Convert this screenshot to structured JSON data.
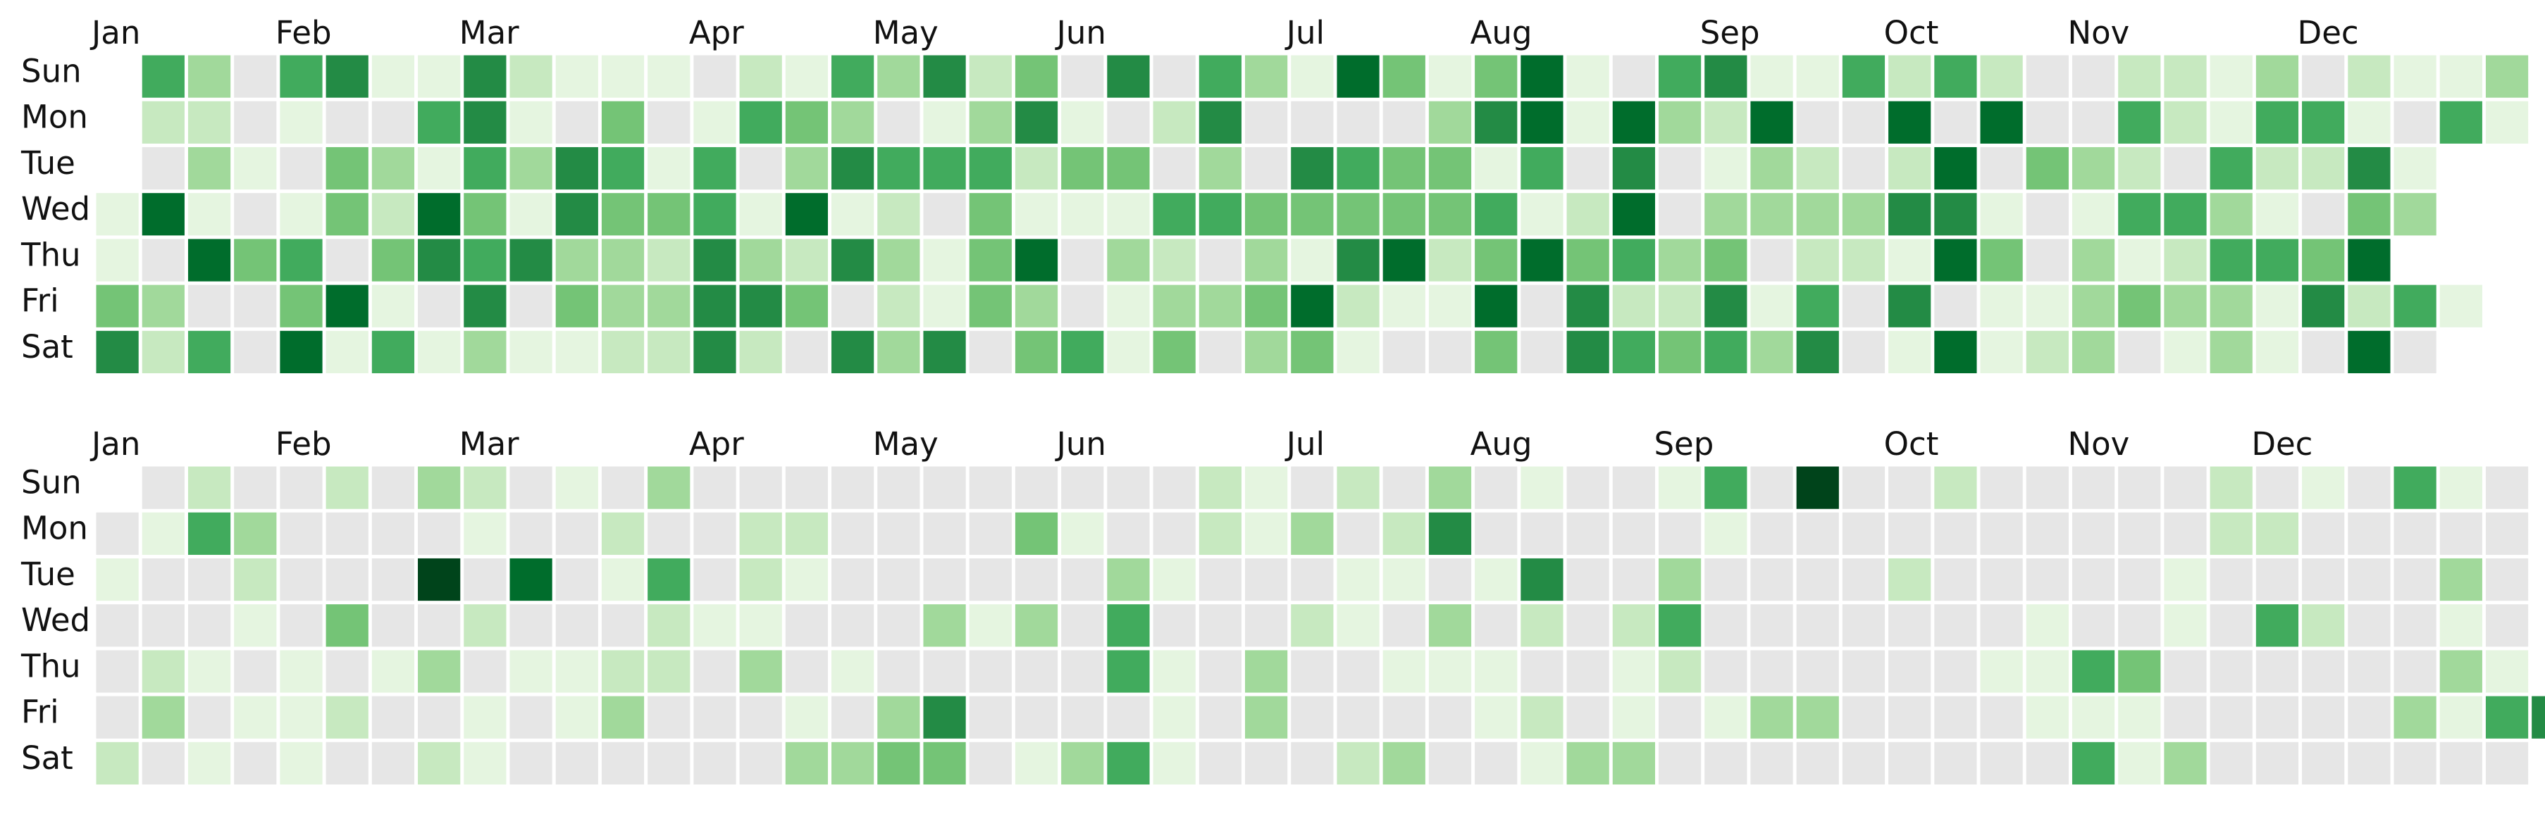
{
  "chart_data": {
    "type": "heatmap",
    "title": "",
    "weekdays": [
      "Sun",
      "Mon",
      "Tue",
      "Wed",
      "Thu",
      "Fri",
      "Sat"
    ],
    "months": [
      "Jan",
      "Feb",
      "Mar",
      "Apr",
      "May",
      "Jun",
      "Jul",
      "Aug",
      "Sep",
      "Oct",
      "Nov",
      "Dec"
    ],
    "scale": {
      "min": 0,
      "max": 8
    },
    "colors": {
      "empty": "#e6e6e6",
      "ramp": [
        "#f7fcf5",
        "#e5f5e0",
        "#c7e9c0",
        "#a1d99b",
        "#74c476",
        "#41ab5d",
        "#238b45",
        "#006d2c",
        "#00441b"
      ]
    },
    "calendars": [
      {
        "month_label_weeks": [
          0,
          4,
          8,
          13,
          17,
          21,
          26,
          30,
          35,
          39,
          43,
          48
        ],
        "grid": [
          [
            null,
            5,
            3,
            0,
            5,
            6,
            1,
            1,
            6,
            2,
            1,
            1,
            1,
            0,
            2,
            1,
            5,
            3,
            6,
            2,
            4,
            0,
            6,
            0,
            5,
            3,
            1,
            7,
            4,
            1,
            4,
            7,
            1,
            0,
            5,
            6,
            1,
            1,
            5,
            2,
            5,
            2,
            0,
            0,
            2,
            2,
            1,
            3,
            0,
            2,
            1,
            1,
            3
          ],
          [
            null,
            2,
            2,
            0,
            1,
            0,
            0,
            5,
            6,
            1,
            0,
            4,
            0,
            1,
            5,
            4,
            3,
            0,
            1,
            3,
            6,
            1,
            0,
            2,
            6,
            0,
            0,
            0,
            0,
            3,
            6,
            7,
            1,
            7,
            3,
            2,
            7,
            0,
            0,
            7,
            0,
            7,
            0,
            0,
            5,
            2,
            1,
            5,
            5,
            1,
            0,
            5,
            1
          ],
          [
            null,
            0,
            3,
            1,
            0,
            4,
            3,
            1,
            5,
            3,
            6,
            5,
            1,
            5,
            0,
            3,
            6,
            5,
            5,
            5,
            2,
            4,
            4,
            0,
            3,
            0,
            6,
            5,
            4,
            4,
            1,
            5,
            0,
            6,
            0,
            1,
            3,
            2,
            0,
            2,
            7,
            0,
            4,
            3,
            2,
            0,
            5,
            2,
            2,
            6,
            1
          ],
          [
            1,
            7,
            1,
            0,
            1,
            4,
            2,
            7,
            4,
            1,
            6,
            4,
            4,
            5,
            1,
            7,
            1,
            2,
            0,
            4,
            1,
            1,
            1,
            5,
            5,
            4,
            4,
            4,
            4,
            4,
            5,
            1,
            2,
            7,
            0,
            3,
            3,
            3,
            3,
            6,
            6,
            1,
            0,
            1,
            5,
            5,
            3,
            1,
            0,
            4,
            3
          ],
          [
            1,
            0,
            7,
            4,
            5,
            0,
            4,
            6,
            5,
            6,
            3,
            3,
            2,
            6,
            3,
            2,
            6,
            3,
            1,
            4,
            7,
            0,
            3,
            2,
            0,
            3,
            1,
            6,
            7,
            2,
            4,
            7,
            4,
            5,
            3,
            4,
            0,
            2,
            2,
            1,
            7,
            4,
            0,
            3,
            1,
            2,
            5,
            5,
            4,
            7
          ],
          [
            4,
            3,
            0,
            0,
            4,
            7,
            1,
            0,
            6,
            0,
            4,
            3,
            3,
            6,
            6,
            4,
            0,
            2,
            1,
            4,
            3,
            0,
            1,
            3,
            3,
            4,
            7,
            2,
            1,
            1,
            7,
            0,
            6,
            2,
            2,
            6,
            1,
            5,
            0,
            6,
            0,
            1,
            1,
            3,
            4,
            3,
            3,
            1,
            6,
            2,
            5,
            1
          ],
          [
            6,
            2,
            5,
            0,
            7,
            1,
            5,
            1,
            3,
            1,
            1,
            2,
            2,
            6,
            2,
            0,
            6,
            3,
            6,
            0,
            4,
            5,
            1,
            4,
            0,
            3,
            4,
            1,
            0,
            0,
            4,
            0,
            6,
            5,
            4,
            5,
            3,
            6,
            0,
            1,
            7,
            1,
            2,
            3,
            0,
            1,
            3,
            1,
            0,
            7,
            0
          ]
        ]
      },
      {
        "month_label_weeks": [
          0,
          4,
          8,
          13,
          17,
          21,
          26,
          30,
          34,
          39,
          43,
          47
        ],
        "grid": [
          [
            null,
            0,
            2,
            0,
            0,
            2,
            0,
            3,
            2,
            0,
            1,
            0,
            3,
            0,
            0,
            0,
            0,
            0,
            0,
            0,
            0,
            0,
            0,
            0,
            2,
            1,
            0,
            2,
            0,
            3,
            0,
            1,
            0,
            0,
            1,
            5,
            0,
            8,
            0,
            0,
            2,
            0,
            0,
            0,
            0,
            0,
            2,
            0,
            1,
            0,
            5,
            1,
            0
          ],
          [
            0,
            1,
            5,
            3,
            0,
            0,
            0,
            0,
            1,
            0,
            0,
            2,
            0,
            0,
            2,
            2,
            0,
            0,
            0,
            0,
            4,
            1,
            0,
            0,
            2,
            1,
            3,
            0,
            2,
            6,
            0,
            0,
            0,
            0,
            0,
            1,
            0,
            0,
            0,
            0,
            0,
            0,
            0,
            0,
            0,
            0,
            2,
            2,
            0,
            0,
            0,
            0,
            0
          ],
          [
            1,
            0,
            0,
            2,
            0,
            0,
            0,
            8,
            0,
            7,
            0,
            1,
            5,
            0,
            2,
            1,
            0,
            0,
            0,
            0,
            0,
            0,
            3,
            1,
            0,
            0,
            0,
            1,
            1,
            0,
            1,
            6,
            0,
            0,
            3,
            0,
            0,
            0,
            0,
            2,
            0,
            0,
            0,
            0,
            0,
            1,
            0,
            0,
            0,
            0,
            0,
            3,
            0
          ],
          [
            0,
            0,
            0,
            1,
            0,
            4,
            0,
            0,
            2,
            0,
            0,
            0,
            2,
            1,
            1,
            0,
            0,
            0,
            3,
            1,
            3,
            0,
            5,
            0,
            0,
            0,
            2,
            1,
            0,
            3,
            0,
            2,
            0,
            2,
            5,
            0,
            0,
            0,
            0,
            0,
            0,
            0,
            1,
            0,
            0,
            1,
            0,
            5,
            2,
            0,
            0,
            1,
            0
          ],
          [
            0,
            2,
            1,
            0,
            1,
            0,
            1,
            3,
            0,
            1,
            1,
            2,
            2,
            0,
            3,
            0,
            1,
            0,
            0,
            0,
            0,
            0,
            5,
            1,
            0,
            3,
            0,
            0,
            1,
            1,
            1,
            0,
            0,
            1,
            2,
            0,
            0,
            0,
            0,
            0,
            0,
            1,
            1,
            5,
            4,
            0,
            0,
            0,
            0,
            0,
            0,
            3,
            1
          ],
          [
            0,
            3,
            0,
            1,
            1,
            2,
            0,
            0,
            1,
            0,
            1,
            3,
            0,
            0,
            0,
            1,
            0,
            3,
            6,
            0,
            0,
            0,
            0,
            1,
            0,
            3,
            0,
            0,
            0,
            0,
            1,
            2,
            0,
            1,
            0,
            1,
            3,
            3,
            0,
            0,
            0,
            0,
            1,
            1,
            1,
            0,
            0,
            0,
            0,
            0,
            3,
            1,
            5,
            6
          ],
          [
            2,
            0,
            1,
            0,
            1,
            0,
            0,
            2,
            1,
            0,
            0,
            0,
            0,
            0,
            0,
            3,
            3,
            4,
            4,
            0,
            1,
            3,
            5,
            1,
            0,
            0,
            0,
            2,
            3,
            0,
            0,
            1,
            3,
            3,
            0,
            0,
            0,
            0,
            0,
            0,
            0,
            0,
            0,
            5,
            1,
            3,
            0,
            0,
            0,
            0,
            0,
            0,
            0
          ]
        ]
      }
    ]
  }
}
